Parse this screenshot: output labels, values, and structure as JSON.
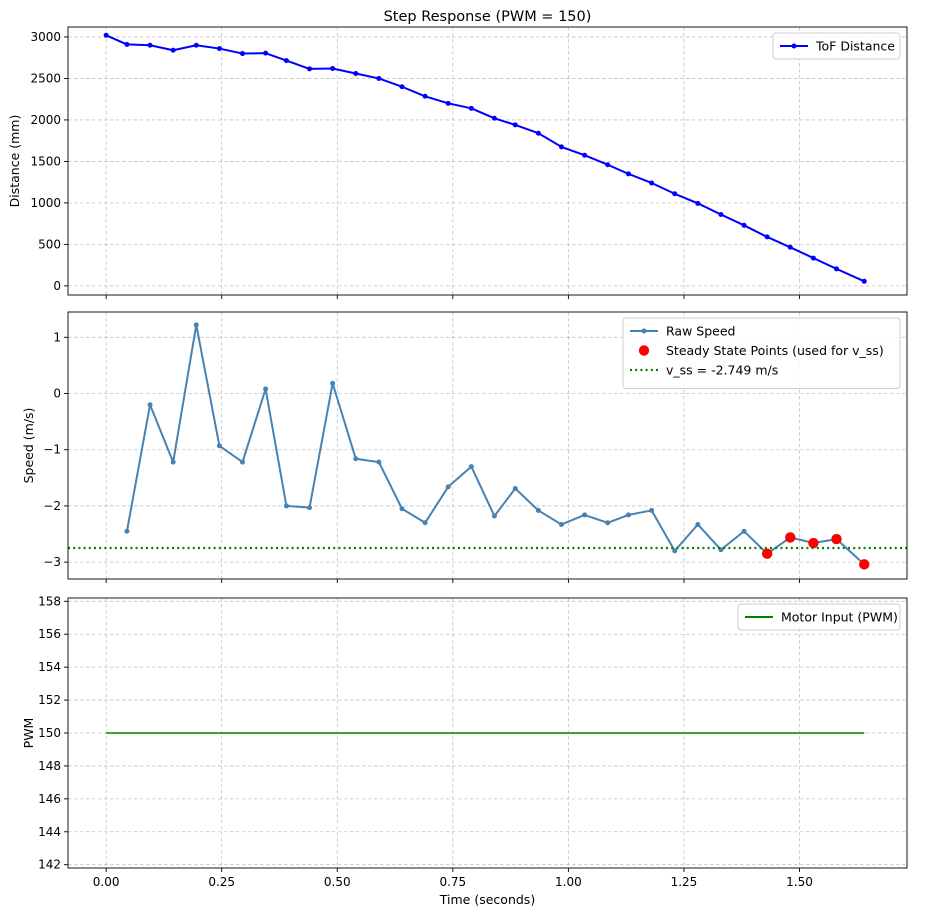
{
  "chart_data": [
    {
      "type": "line",
      "title": "Step Response (PWM = 150)",
      "xlabel": "",
      "ylabel": "Distance (mm)",
      "xlim": [
        -0.0825,
        1.7325
      ],
      "ylim": [
        -110,
        3120
      ],
      "xticks": [
        0.0,
        0.25,
        0.5,
        0.75,
        1.0,
        1.25,
        1.5
      ],
      "yticks": [
        0,
        500,
        1000,
        1500,
        2000,
        2500,
        3000
      ],
      "ytick_labels": [
        "0",
        "500",
        "1000",
        "1500",
        "2000",
        "2500",
        "3000"
      ],
      "grid": true,
      "legend_position": "top-right",
      "series": [
        {
          "name": "ToF Distance",
          "color": "#0000ff",
          "marker": "dot",
          "x": [
            0.0,
            0.045,
            0.095,
            0.145,
            0.195,
            0.245,
            0.295,
            0.345,
            0.39,
            0.44,
            0.49,
            0.54,
            0.59,
            0.64,
            0.69,
            0.74,
            0.79,
            0.84,
            0.885,
            0.935,
            0.985,
            1.035,
            1.085,
            1.13,
            1.18,
            1.23,
            1.28,
            1.33,
            1.38,
            1.43,
            1.48,
            1.53,
            1.58,
            1.64
          ],
          "values": [
            3020,
            2910,
            2900,
            2840,
            2900,
            2860,
            2800,
            2805,
            2715,
            2615,
            2620,
            2560,
            2500,
            2400,
            2285,
            2200,
            2140,
            2020,
            1940,
            1840,
            1675,
            1575,
            1460,
            1350,
            1240,
            1110,
            995,
            860,
            730,
            590,
            465,
            335,
            205,
            55
          ]
        }
      ]
    },
    {
      "type": "line",
      "title": "",
      "xlabel": "",
      "ylabel": "Speed (m/s)",
      "xlim": [
        -0.0825,
        1.7325
      ],
      "ylim": [
        -3.3,
        1.45
      ],
      "xticks": [
        0.0,
        0.25,
        0.5,
        0.75,
        1.0,
        1.25,
        1.5
      ],
      "yticks": [
        -3,
        -2,
        -1,
        0,
        1
      ],
      "ytick_labels": [
        "−3",
        "−2",
        "−1",
        "0",
        "1"
      ],
      "grid": true,
      "legend_position": "top-right",
      "series": [
        {
          "name": "Raw Speed",
          "color": "#4682b4",
          "marker": "dot",
          "x": [
            0.045,
            0.095,
            0.145,
            0.195,
            0.245,
            0.295,
            0.345,
            0.39,
            0.44,
            0.49,
            0.54,
            0.59,
            0.64,
            0.69,
            0.74,
            0.79,
            0.84,
            0.885,
            0.935,
            0.985,
            1.035,
            1.085,
            1.13,
            1.18,
            1.23,
            1.28,
            1.33,
            1.38,
            1.43,
            1.48,
            1.53,
            1.58,
            1.64
          ],
          "values": [
            -2.45,
            -0.2,
            -1.22,
            1.22,
            -0.93,
            -1.22,
            0.08,
            -2.0,
            -2.03,
            0.18,
            -1.16,
            -1.22,
            -2.05,
            -2.3,
            -1.66,
            -1.3,
            -2.18,
            -1.69,
            -2.08,
            -2.33,
            -2.16,
            -2.3,
            -2.16,
            -2.08,
            -2.8,
            -2.33,
            -2.78,
            -2.45,
            -2.85,
            -2.56,
            -2.66,
            -2.59,
            -3.04
          ]
        },
        {
          "name": "Steady State Points (used for v_ss)",
          "color": "#ff0000",
          "type": "scatter",
          "x": [
            1.43,
            1.48,
            1.53,
            1.58,
            1.64
          ],
          "values": [
            -2.85,
            -2.56,
            -2.66,
            -2.59,
            -3.04
          ]
        },
        {
          "name": "v_ss = -2.749 m/s",
          "color": "#008000",
          "type": "hline",
          "value": -2.749
        }
      ]
    },
    {
      "type": "line",
      "title": "",
      "xlabel": "Time (seconds)",
      "ylabel": "PWM",
      "xlim": [
        -0.0825,
        1.7325
      ],
      "ylim": [
        141.8,
        158.2
      ],
      "xticks": [
        0.0,
        0.25,
        0.5,
        0.75,
        1.0,
        1.25,
        1.5
      ],
      "xtick_labels": [
        "0.00",
        "0.25",
        "0.50",
        "0.75",
        "1.00",
        "1.25",
        "1.50"
      ],
      "yticks": [
        142,
        144,
        146,
        148,
        150,
        152,
        154,
        156,
        158
      ],
      "ytick_labels": [
        "142",
        "144",
        "146",
        "148",
        "150",
        "152",
        "154",
        "156",
        "158"
      ],
      "grid": true,
      "legend_position": "top-right",
      "series": [
        {
          "name": "Motor Input (PWM)",
          "color": "#008000",
          "x": [
            0.0,
            1.64
          ],
          "values": [
            150,
            150
          ]
        }
      ]
    }
  ]
}
